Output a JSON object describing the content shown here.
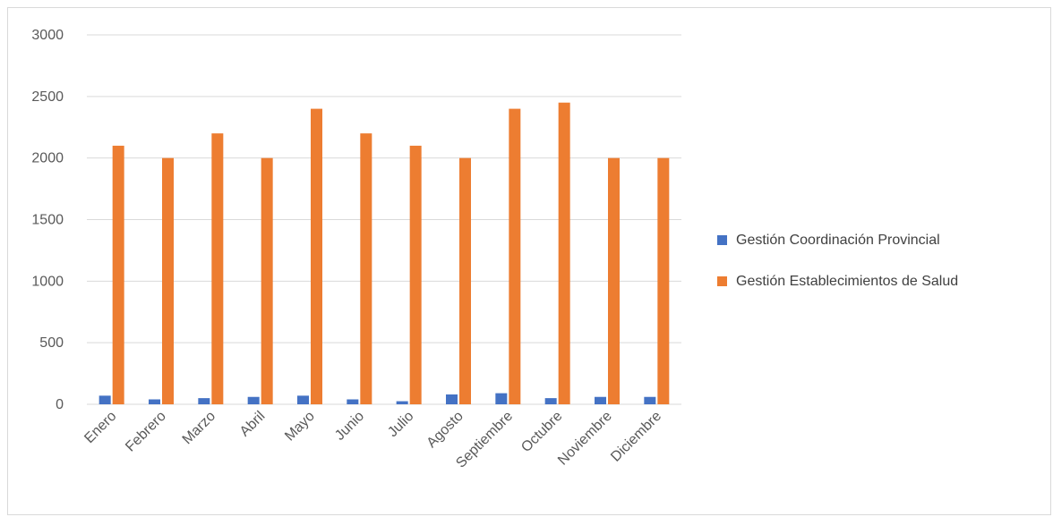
{
  "chart_data": {
    "type": "bar",
    "title": "",
    "xlabel": "",
    "ylabel": "",
    "categories": [
      "Enero",
      "Febrero",
      "Marzo",
      "Abril",
      "Mayo",
      "Junio",
      "Julio",
      "Agosto",
      "Septiembre",
      "Octubre",
      "Noviembre",
      "Diciembre"
    ],
    "series": [
      {
        "name": "Gestión Coordinación Provincial",
        "color": "#4472c4",
        "values": [
          70,
          40,
          50,
          60,
          70,
          40,
          25,
          80,
          90,
          50,
          60,
          60
        ]
      },
      {
        "name": "Gestión Establecimientos de Salud",
        "color": "#ed7d31",
        "values": [
          2100,
          2000,
          2200,
          2000,
          2400,
          2200,
          2100,
          2000,
          2400,
          2450,
          2000,
          2000
        ]
      }
    ],
    "ylim": [
      0,
      3000
    ],
    "yticks": [
      0,
      500,
      1000,
      1500,
      2000,
      2500,
      3000
    ],
    "grid": true,
    "legend_position": "right"
  }
}
